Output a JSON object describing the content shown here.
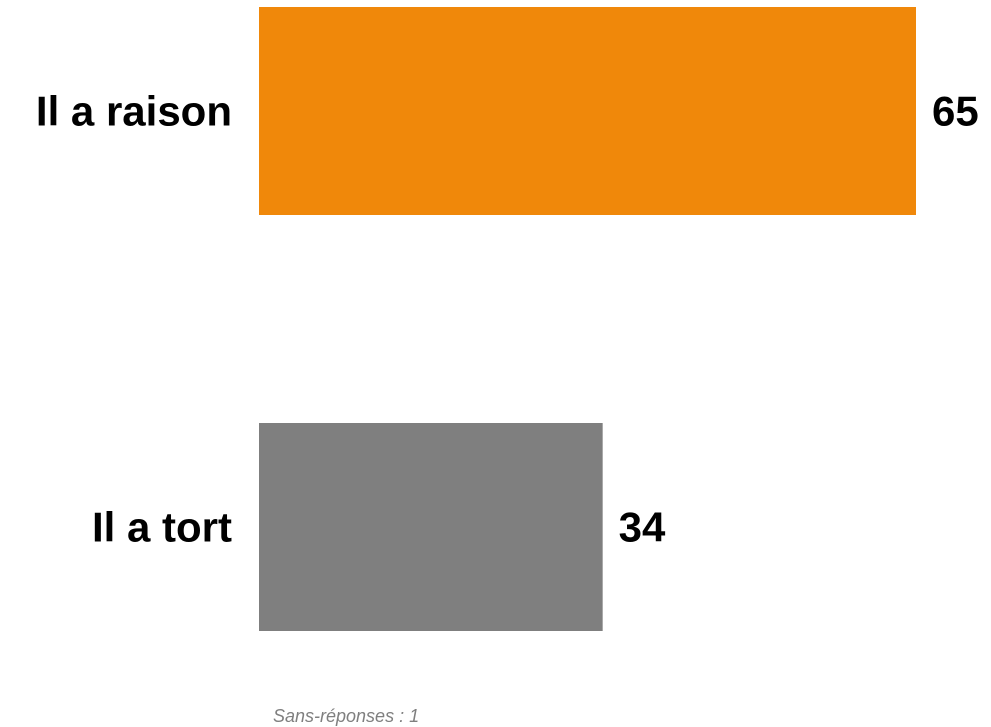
{
  "chart_data": {
    "type": "bar",
    "orientation": "horizontal",
    "categories": [
      "Il a raison",
      "Il a tort"
    ],
    "values": [
      65,
      34
    ],
    "colors": [
      "#f0880a",
      "#7f7f7f"
    ],
    "xlim": [
      0,
      65
    ],
    "grid": false,
    "legend": "none"
  },
  "footnote": "Sans-réponses : 1"
}
